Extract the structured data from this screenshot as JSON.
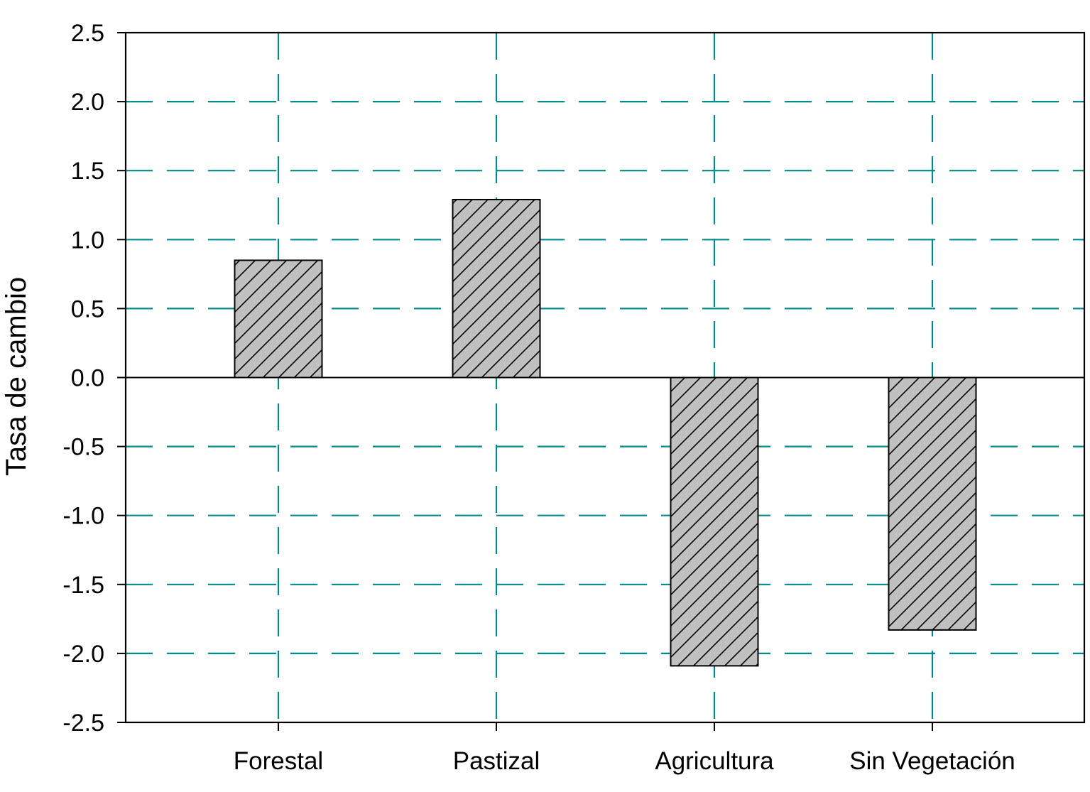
{
  "chart_data": {
    "type": "bar",
    "title": "",
    "xlabel": "",
    "ylabel": "Tasa de cambio",
    "categories": [
      "Forestal",
      "Pastizal",
      "Agricultura",
      "Sin Vegetación"
    ],
    "values": [
      0.85,
      1.29,
      -2.09,
      -1.83
    ],
    "ylim": [
      -2.5,
      2.5
    ],
    "yticks": [
      2.5,
      2.0,
      1.5,
      1.0,
      0.5,
      0.0,
      -0.5,
      -1.0,
      -1.5,
      -2.0,
      -2.5
    ],
    "ytick_labels": [
      "2.5",
      "2.0",
      "1.5",
      "1.0",
      "0.5",
      "0.0",
      "-0.5",
      "-1.0",
      "-1.5",
      "-2.0",
      "-2.5"
    ],
    "grid": true,
    "grid_color": "#008b8b",
    "bar_fill": "#c0c0c0",
    "bar_pattern": "diagonal-hatch",
    "bar_stroke": "#000000",
    "zero_line": true
  }
}
